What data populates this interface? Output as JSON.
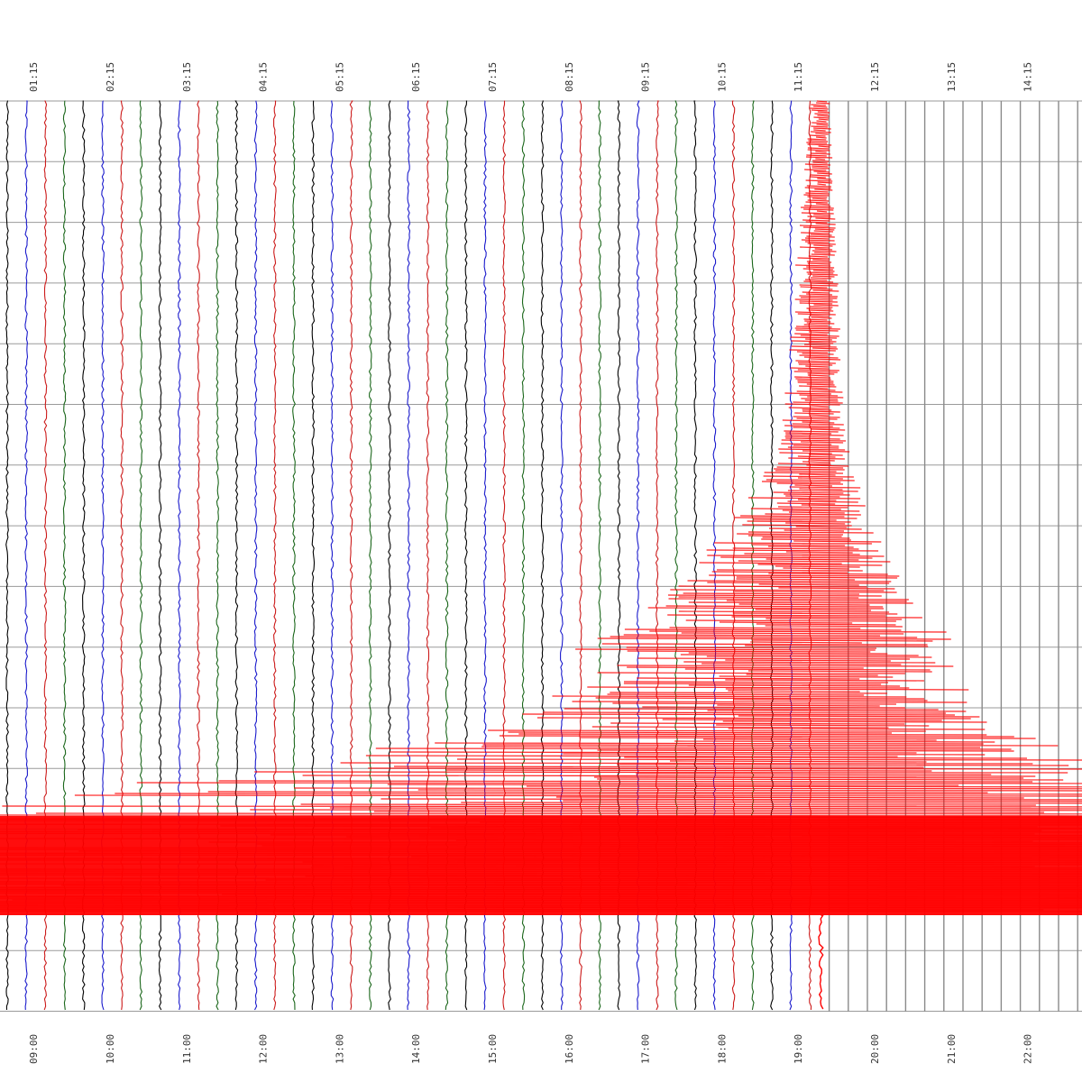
{
  "chart_data": {
    "type": "line",
    "title": "",
    "xlabel": "",
    "ylabel": "",
    "top_tick_labels": [
      "01:15",
      "02:15",
      "03:15",
      "04:15",
      "05:15",
      "06:15",
      "07:15",
      "08:15",
      "09:15",
      "10:15",
      "11:15",
      "12:15",
      "13:15",
      "14:15"
    ],
    "bottom_tick_labels": [
      "09:00",
      "10:00",
      "11:00",
      "12:00",
      "13:00",
      "14:00",
      "15:00",
      "16:00",
      "17:00",
      "18:00",
      "19:00",
      "20:00",
      "21:00",
      "22:00"
    ],
    "traces_per_hour": 4,
    "trace_color_cycle": [
      "#000000",
      "#1a1acc",
      "#cc1a1a",
      "#1a661a"
    ],
    "traces_before_event": 41,
    "trace_ending_with_event": 42,
    "event": {
      "color": "#ff0000",
      "onset_trace": 42,
      "onset_fraction_of_window": 0.0,
      "peak_fraction_of_window": 0.8
    },
    "grid": true,
    "legend": "none"
  }
}
